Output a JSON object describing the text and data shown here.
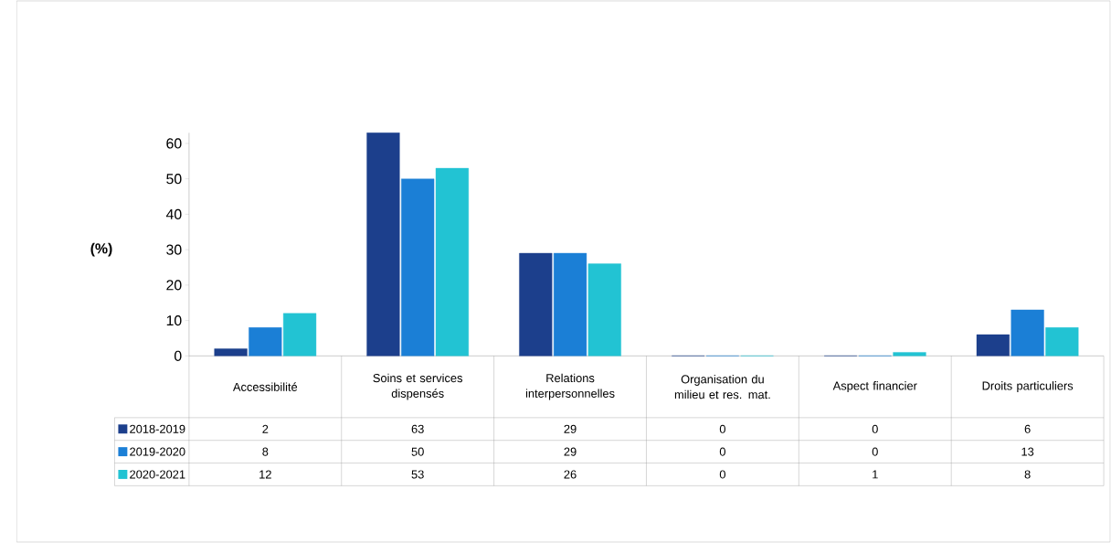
{
  "chart_data": {
    "type": "bar",
    "ylabel": "(%)",
    "categories": [
      "Accessibilité",
      "Soins et services dispensés",
      "Relations interpersonnelles",
      "Organisation du milieu et res. mat.",
      "Aspect financier",
      "Droits particuliers"
    ],
    "series": [
      {
        "name": "2018-2019",
        "color": "#1c3f8c",
        "values": [
          2,
          63,
          29,
          0,
          0,
          6
        ]
      },
      {
        "name": "2019-2020",
        "color": "#1b7fd6",
        "values": [
          8,
          50,
          29,
          0,
          0,
          13
        ]
      },
      {
        "name": "2020-2021",
        "color": "#22c3d3",
        "values": [
          12,
          53,
          26,
          0,
          1,
          8
        ]
      }
    ],
    "ylim": [
      0,
      63
    ],
    "yticks": [
      0,
      10,
      20,
      30,
      40,
      50,
      60
    ],
    "data_labels": true,
    "legend": "bottom left",
    "grid": false
  }
}
